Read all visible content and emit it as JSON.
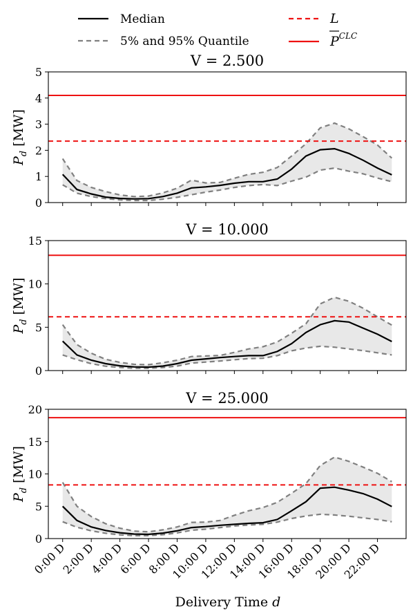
{
  "colors": {
    "median": "#000000",
    "quantile": "#808080",
    "band": "#e8e8e8",
    "limit": "#ee1111",
    "pclc": "#ee1111"
  },
  "legend": {
    "median": "Median",
    "quantile": "5% and 95% Quantile",
    "l": "L",
    "pclc": "P",
    "pclc_sup": "CLC"
  },
  "xlabel": "Delivery Time",
  "xlabel_var": "d",
  "ylabel": "P",
  "ylabel_sub": "d",
  "ylabel_unit": "[MW]",
  "chart_data": [
    {
      "type": "line",
      "title": "V = 2.500",
      "x": [
        0,
        1,
        2,
        3,
        4,
        5,
        6,
        7,
        8,
        9,
        10,
        11,
        12,
        13,
        14,
        15,
        16,
        17,
        18,
        19,
        20,
        21,
        22,
        23
      ],
      "ylim": [
        0,
        5
      ],
      "yticks": [
        0,
        1,
        2,
        3,
        4,
        5
      ],
      "series": [
        {
          "name": "Median",
          "values": [
            1.08,
            0.5,
            0.33,
            0.21,
            0.16,
            0.14,
            0.15,
            0.23,
            0.36,
            0.56,
            0.6,
            0.66,
            0.74,
            0.8,
            0.8,
            0.9,
            1.28,
            1.78,
            2.02,
            2.06,
            1.88,
            1.62,
            1.32,
            1.06
          ]
        },
        {
          "name": "5% and 95% Quantile",
          "upper": [
            1.68,
            0.84,
            0.58,
            0.42,
            0.29,
            0.23,
            0.25,
            0.37,
            0.55,
            0.86,
            0.75,
            0.77,
            0.93,
            1.08,
            1.16,
            1.34,
            1.78,
            2.25,
            2.86,
            3.04,
            2.82,
            2.52,
            2.2,
            1.7
          ],
          "lower": [
            0.68,
            0.36,
            0.23,
            0.15,
            0.1,
            0.08,
            0.08,
            0.13,
            0.2,
            0.3,
            0.4,
            0.48,
            0.58,
            0.65,
            0.69,
            0.65,
            0.82,
            0.97,
            1.24,
            1.32,
            1.2,
            1.1,
            0.94,
            0.8
          ]
        }
      ],
      "L": 2.35,
      "P_CLC": 4.1
    },
    {
      "type": "line",
      "title": "V = 10.000",
      "x": [
        0,
        1,
        2,
        3,
        4,
        5,
        6,
        7,
        8,
        9,
        10,
        11,
        12,
        13,
        14,
        15,
        16,
        17,
        18,
        19,
        20,
        21,
        22,
        23
      ],
      "ylim": [
        0,
        15
      ],
      "yticks": [
        0,
        5,
        10,
        15
      ],
      "series": [
        {
          "name": "Median",
          "values": [
            3.4,
            1.8,
            1.2,
            0.8,
            0.55,
            0.42,
            0.4,
            0.52,
            0.8,
            1.2,
            1.35,
            1.5,
            1.62,
            1.72,
            1.72,
            2.2,
            3.1,
            4.4,
            5.3,
            5.75,
            5.6,
            4.9,
            4.2,
            3.35
          ]
        },
        {
          "name": "5% and 95% Quantile",
          "upper": [
            5.3,
            3.0,
            2.0,
            1.3,
            0.95,
            0.72,
            0.68,
            0.9,
            1.2,
            1.62,
            1.68,
            1.75,
            2.1,
            2.5,
            2.75,
            3.3,
            4.3,
            5.4,
            7.7,
            8.45,
            8.0,
            7.2,
            6.2,
            5.25
          ],
          "lower": [
            1.8,
            1.25,
            0.8,
            0.5,
            0.36,
            0.26,
            0.26,
            0.35,
            0.52,
            0.86,
            0.98,
            1.1,
            1.25,
            1.38,
            1.42,
            1.72,
            2.28,
            2.6,
            2.8,
            2.7,
            2.5,
            2.3,
            2.05,
            1.8
          ]
        }
      ],
      "L": 6.2,
      "P_CLC": 13.3
    },
    {
      "type": "line",
      "title": "V = 25.000",
      "x": [
        0,
        1,
        2,
        3,
        4,
        5,
        6,
        7,
        8,
        9,
        10,
        11,
        12,
        13,
        14,
        15,
        16,
        17,
        18,
        19,
        20,
        21,
        22,
        23
      ],
      "ylim": [
        0,
        20
      ],
      "yticks": [
        0,
        5,
        10,
        15,
        20
      ],
      "series": [
        {
          "name": "Median",
          "values": [
            5.0,
            2.8,
            1.8,
            1.25,
            0.9,
            0.7,
            0.65,
            0.85,
            1.2,
            1.7,
            1.85,
            2.05,
            2.2,
            2.35,
            2.45,
            2.95,
            4.3,
            5.7,
            7.8,
            7.95,
            7.5,
            6.95,
            6.1,
            4.95
          ]
        },
        {
          "name": "5% and 95% Quantile",
          "upper": [
            8.7,
            5.0,
            3.4,
            2.3,
            1.6,
            1.15,
            1.05,
            1.35,
            1.8,
            2.5,
            2.55,
            2.8,
            3.6,
            4.3,
            4.8,
            5.6,
            7.0,
            8.5,
            11.3,
            12.6,
            11.95,
            11.05,
            10.1,
            8.8
          ],
          "lower": [
            2.6,
            1.75,
            1.2,
            0.82,
            0.58,
            0.45,
            0.45,
            0.6,
            0.88,
            1.28,
            1.45,
            1.7,
            1.95,
            2.1,
            2.2,
            2.55,
            3.1,
            3.5,
            3.75,
            3.65,
            3.45,
            3.2,
            2.95,
            2.6
          ]
        }
      ],
      "L": 8.3,
      "P_CLC": 18.7
    }
  ],
  "xticks": [
    {
      "x": 0,
      "label": "0:00 D"
    },
    {
      "x": 2,
      "label": "2:00 D"
    },
    {
      "x": 4,
      "label": "4:00 D"
    },
    {
      "x": 6,
      "label": "6:00 D"
    },
    {
      "x": 8,
      "label": "8:00 D"
    },
    {
      "x": 10,
      "label": "10:00 D"
    },
    {
      "x": 12,
      "label": "12:00 D"
    },
    {
      "x": 14,
      "label": "14:00 D"
    },
    {
      "x": 16,
      "label": "16:00 D"
    },
    {
      "x": 18,
      "label": "18:00 D"
    },
    {
      "x": 20,
      "label": "20:00 D"
    },
    {
      "x": 22,
      "label": "22:00 D"
    }
  ]
}
